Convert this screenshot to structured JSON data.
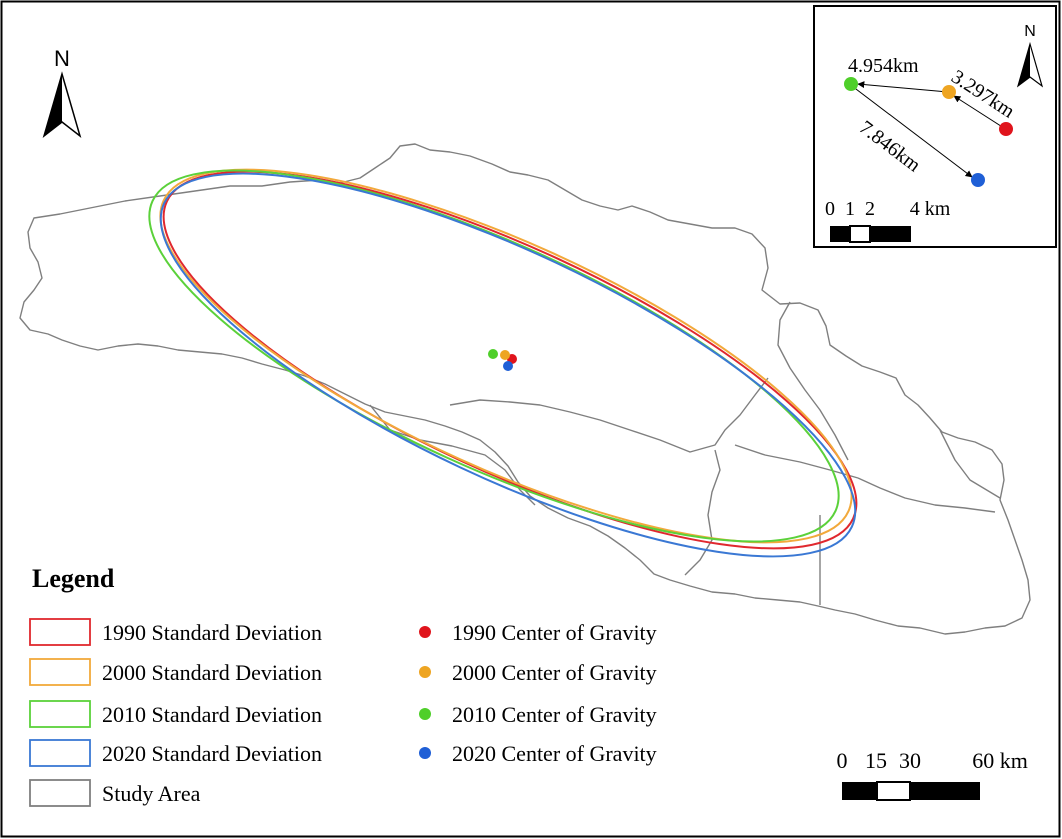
{
  "map": {
    "north_letter": "N",
    "study_area_color": "#7f7f7f",
    "ellipses": [
      {
        "year": "1990",
        "color": "#e0282e"
      },
      {
        "year": "2000",
        "color": "#f2a93b"
      },
      {
        "year": "2010",
        "color": "#5bd13a"
      },
      {
        "year": "2020",
        "color": "#3a78d4"
      }
    ],
    "centers": [
      {
        "year": "1990",
        "color": "#e0141c"
      },
      {
        "year": "2000",
        "color": "#eea522"
      },
      {
        "year": "2010",
        "color": "#4fcf2a"
      },
      {
        "year": "2020",
        "color": "#1f5fd6"
      }
    ]
  },
  "inset": {
    "north_letter": "N",
    "distances": [
      "4.954km",
      "3.297km",
      "7.846km"
    ],
    "scale_labels": [
      "0",
      "1",
      "2",
      "4 km"
    ]
  },
  "scale": {
    "labels": [
      "0",
      "15",
      "30",
      "60 km"
    ]
  },
  "legend": {
    "title": "Legend",
    "left_items": [
      {
        "label": "1990 Standard Deviation",
        "color": "#e0282e"
      },
      {
        "label": "2000 Standard Deviation",
        "color": "#f2a93b"
      },
      {
        "label": "2010 Standard Deviation",
        "color": "#5bd13a"
      },
      {
        "label": "2020 Standard Deviation",
        "color": "#3a78d4"
      },
      {
        "label": "Study Area",
        "color": "#7f7f7f"
      }
    ],
    "right_items": [
      {
        "label": "1990 Center of Gravity",
        "color": "#e0141c"
      },
      {
        "label": "2000 Center of Gravity",
        "color": "#eea522"
      },
      {
        "label": "2010 Center of Gravity",
        "color": "#4fcf2a"
      },
      {
        "label": "2020 Center of Gravity",
        "color": "#1f5fd6"
      }
    ]
  }
}
